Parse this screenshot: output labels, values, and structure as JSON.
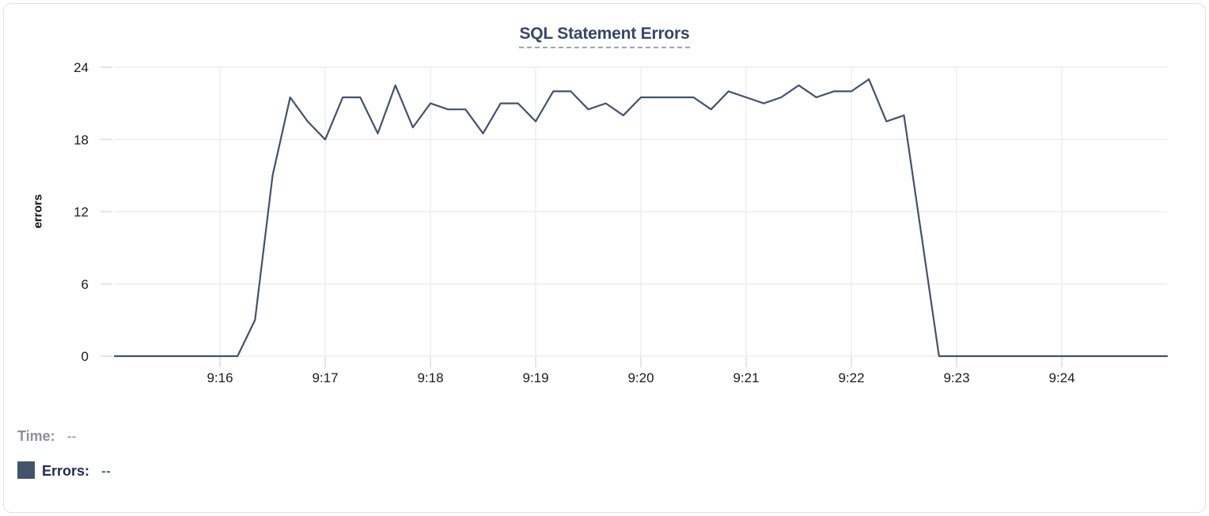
{
  "chart": {
    "title": "SQL Statement Errors",
    "ylabel": "errors"
  },
  "readout": {
    "time_label": "Time:",
    "time_value": "--",
    "errors_label": "Errors:",
    "errors_value": "--",
    "swatch_color": "#42536e"
  },
  "colors": {
    "line": "#42526e",
    "grid": "#ededee",
    "tick_stub": "#e4e4e7",
    "tick_text": "#1c1c1c",
    "title_text": "#36466b"
  },
  "chart_data": {
    "type": "line",
    "title": "SQL Statement Errors",
    "xlabel": "",
    "ylabel": "errors",
    "ylim": [
      0,
      24
    ],
    "yticks": [
      0,
      6,
      12,
      18,
      24
    ],
    "xticks": [
      "9:16",
      "9:17",
      "9:18",
      "9:19",
      "9:20",
      "9:21",
      "9:22",
      "9:23",
      "9:24"
    ],
    "x_range": [
      "9:15:00",
      "9:25:00"
    ],
    "grid": true,
    "legend_position": "bottom-left",
    "legend": [
      {
        "name": "Errors",
        "color": "#42536e"
      }
    ],
    "series": [
      {
        "name": "Errors",
        "x": [
          "9:15:00",
          "9:15:10",
          "9:15:20",
          "9:15:30",
          "9:15:40",
          "9:15:50",
          "9:16:00",
          "9:16:10",
          "9:16:20",
          "9:16:30",
          "9:16:40",
          "9:16:50",
          "9:17:00",
          "9:17:10",
          "9:17:20",
          "9:17:30",
          "9:17:40",
          "9:17:50",
          "9:18:00",
          "9:18:10",
          "9:18:20",
          "9:18:30",
          "9:18:40",
          "9:18:50",
          "9:19:00",
          "9:19:10",
          "9:19:20",
          "9:19:30",
          "9:19:40",
          "9:19:50",
          "9:20:00",
          "9:20:10",
          "9:20:20",
          "9:20:30",
          "9:20:40",
          "9:20:50",
          "9:21:00",
          "9:21:10",
          "9:21:20",
          "9:21:30",
          "9:21:40",
          "9:21:50",
          "9:22:00",
          "9:22:10",
          "9:22:20",
          "9:22:30",
          "9:22:40",
          "9:22:50",
          "9:23:00",
          "9:23:10",
          "9:23:20",
          "9:23:30",
          "9:23:40",
          "9:23:50",
          "9:24:00",
          "9:24:10",
          "9:24:20",
          "9:24:30",
          "9:24:40",
          "9:24:50",
          "9:25:00"
        ],
        "values": [
          0,
          0,
          0,
          0,
          0,
          0,
          0,
          0,
          3,
          15,
          21.5,
          19.5,
          18,
          21.5,
          21.5,
          18.5,
          22.5,
          19,
          21,
          20.5,
          20.5,
          18.5,
          21,
          21,
          19.5,
          22,
          22,
          20.5,
          21,
          20,
          21.5,
          21.5,
          21.5,
          21.5,
          20.5,
          22,
          21.5,
          21,
          21.5,
          22.5,
          21.5,
          22,
          22,
          23,
          19.5,
          20,
          10,
          0,
          0,
          0,
          0,
          0,
          0,
          0,
          0,
          0,
          0,
          0,
          0,
          0,
          0
        ]
      }
    ]
  }
}
